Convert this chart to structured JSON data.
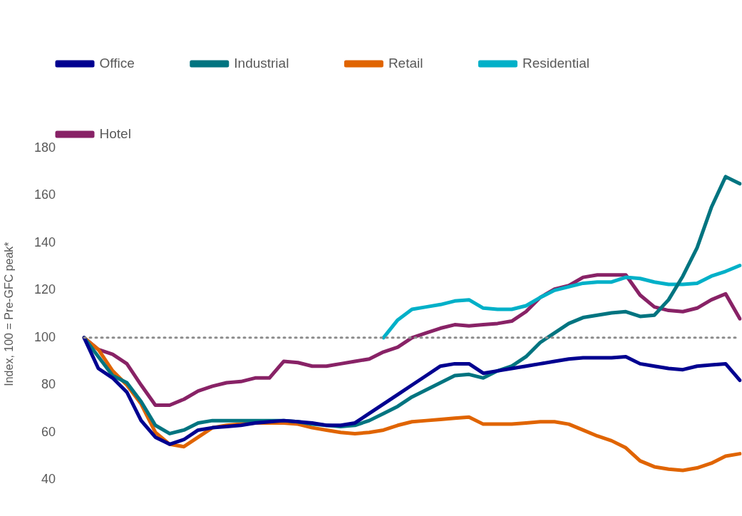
{
  "chart_data": {
    "type": "line",
    "ylabel": "Index, 100 = Pre-GFC peak*",
    "categories": [
      null,
      null,
      null,
      null,
      null,
      null,
      null,
      null,
      null,
      null,
      null,
      null,
      null,
      null,
      null,
      null,
      null,
      null,
      null,
      null,
      null,
      null,
      null,
      null,
      null,
      null,
      null,
      null,
      null,
      null,
      null,
      null,
      null,
      null,
      null,
      null,
      null,
      null,
      null,
      null,
      null,
      null,
      null,
      null,
      null,
      null,
      null
    ],
    "ylim": [
      40,
      180
    ],
    "yticks": [
      40,
      60,
      80,
      100,
      120,
      140,
      160,
      180
    ],
    "grid": false,
    "legend": "top",
    "marker": "none",
    "line_style": "solid",
    "ref_lines": [
      {
        "axis": "y",
        "value": 100,
        "color": "#8c8c8c",
        "line_style": "dotted"
      }
    ],
    "series": [
      {
        "name": "Office",
        "color": "#000090",
        "values": [
          100,
          87,
          83,
          77,
          65,
          58,
          55,
          57,
          61,
          62,
          62.5,
          63,
          64,
          64.5,
          65,
          64.5,
          64,
          63,
          63,
          64,
          68,
          72,
          76,
          80,
          84,
          88,
          89,
          89,
          85,
          86,
          87,
          88,
          89,
          90,
          91,
          91.5,
          91.5,
          91.5,
          92,
          89,
          88,
          87,
          86.5,
          88,
          88.5,
          89,
          82
        ]
      },
      {
        "name": "Industrial",
        "color": "#007480",
        "values": [
          100,
          92,
          84,
          81,
          73,
          63,
          59.5,
          61,
          64,
          65,
          65,
          65,
          65,
          65,
          65,
          64.5,
          63.5,
          63,
          62.5,
          63,
          65,
          68,
          71,
          75,
          78,
          81,
          84,
          84.5,
          83,
          86,
          88,
          92,
          98,
          102,
          106,
          108.5,
          109.5,
          110.5,
          111,
          109,
          109.5,
          116,
          126,
          138,
          155,
          168,
          165
        ]
      },
      {
        "name": "Retail",
        "color": "#e06400",
        "values": [
          100,
          95,
          86,
          80,
          72,
          60,
          55,
          54,
          58,
          62,
          63,
          63.5,
          64,
          64,
          64,
          63.5,
          62,
          61,
          60,
          59.5,
          60,
          61,
          63,
          64.5,
          65,
          65.5,
          66,
          66.5,
          63.5,
          63.5,
          63.5,
          64,
          64.5,
          64.5,
          63.5,
          61,
          58.5,
          56.5,
          53.5,
          48,
          45.5,
          44.5,
          44,
          45,
          47,
          50,
          51
        ]
      },
      {
        "name": "Residential",
        "color": "#00b0c8",
        "values": [
          null,
          null,
          null,
          null,
          null,
          null,
          null,
          null,
          null,
          null,
          null,
          null,
          null,
          null,
          null,
          null,
          null,
          null,
          null,
          null,
          null,
          100,
          107.5,
          112,
          113,
          114,
          115.5,
          116,
          112.5,
          112,
          112,
          113.5,
          117,
          120,
          121.5,
          123,
          123.5,
          123.5,
          125.5,
          125,
          123.5,
          122.5,
          122.5,
          123,
          126,
          128,
          130.5
        ]
      },
      {
        "name": "Hotel",
        "color": "#882266",
        "values": [
          100,
          95,
          93,
          89,
          80,
          71.5,
          71.5,
          74,
          77.5,
          79.5,
          81,
          81.5,
          83,
          83,
          90,
          89.5,
          88,
          88,
          89,
          90,
          91,
          94,
          96,
          100,
          102,
          104,
          105.5,
          105,
          105.5,
          106,
          107,
          111,
          117,
          120.5,
          122,
          125.5,
          126.5,
          126.5,
          126.5,
          118,
          113,
          111.5,
          111,
          112.5,
          116,
          118.5,
          108
        ]
      }
    ]
  }
}
